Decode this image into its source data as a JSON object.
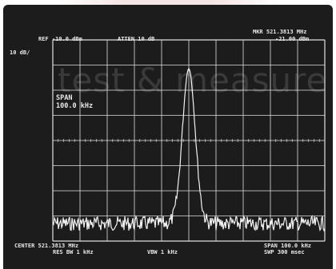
{
  "watermark": "test & measure",
  "readouts": {
    "ref_level": "REF -10.0 dBm",
    "attenuation": "ATTEN 10 dB",
    "marker_freq": "MKR 521.3813 MHz",
    "marker_level": "-21.00 dBm",
    "scale": "10 dB/",
    "span_label": "SPAN",
    "span_value": "100.0 kHz",
    "center": "CENTER 521.3813 MHz",
    "span_bottom": "SPAN 100.0 kHz",
    "res_bw": "RES BW 1 kHz",
    "vbw": "VBW 1 kHz",
    "sweep": "SWP 300 msec"
  },
  "colors": {
    "screen_bg": "#1c1c1c",
    "trace": "#f2f2f2",
    "grid": "#e0e0e0"
  }
}
